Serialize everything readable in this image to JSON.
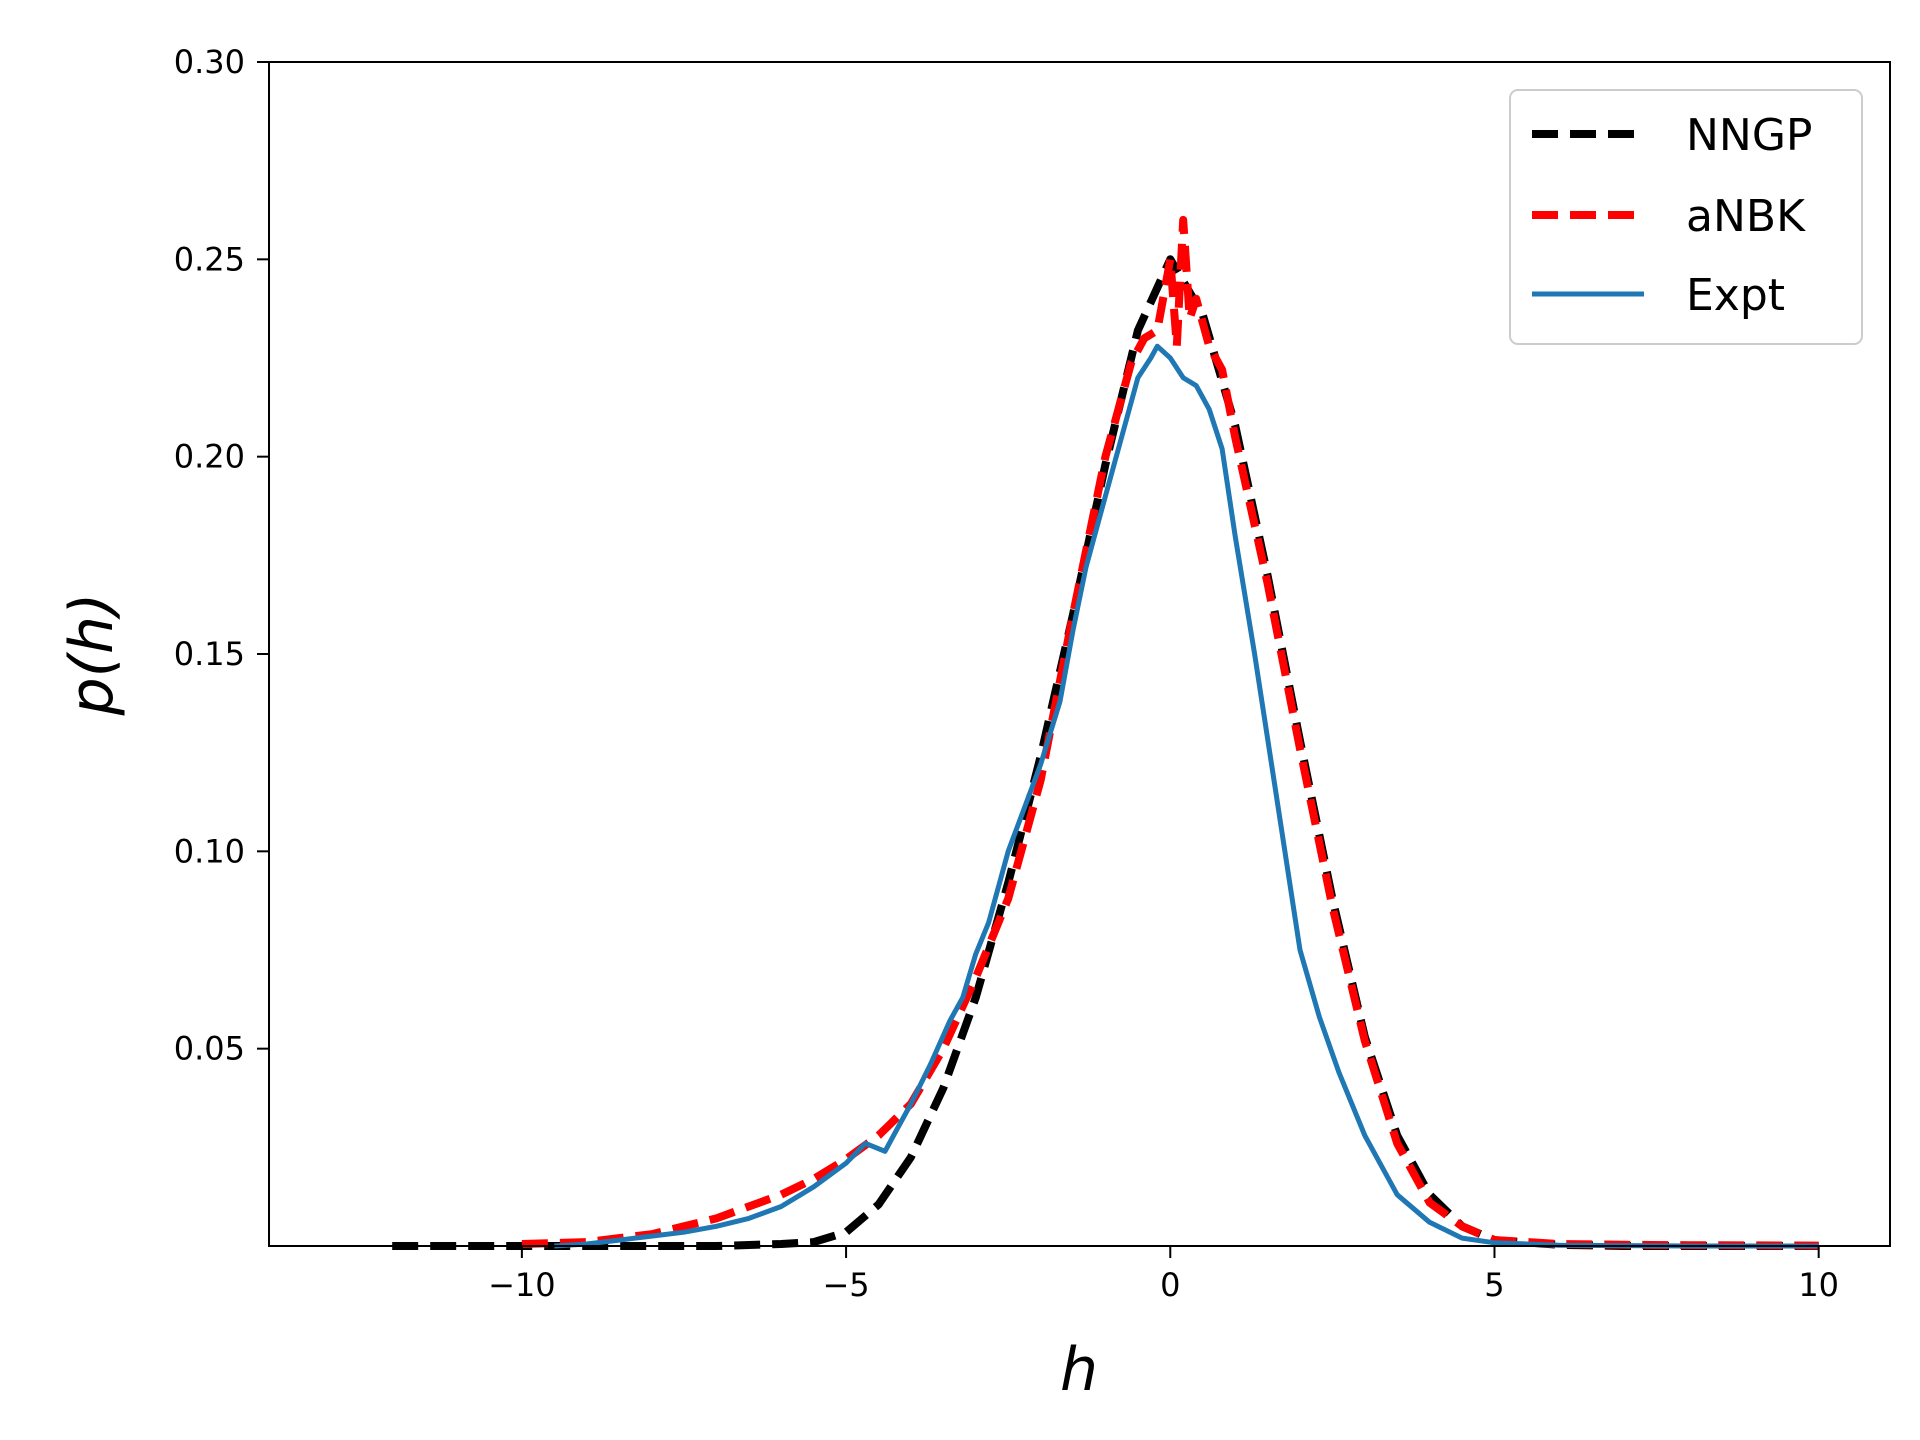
{
  "chart_data": {
    "type": "line",
    "xlabel": "h",
    "ylabel": "p(h)",
    "xlim": [
      -13.9,
      11.1
    ],
    "ylim": [
      0.0,
      0.3
    ],
    "x_ticks": [
      -10,
      -5,
      0,
      5,
      10
    ],
    "x_tick_labels": [
      "−10",
      "−5",
      "0",
      "5",
      "10"
    ],
    "y_ticks": [
      0.05,
      0.1,
      0.15,
      0.2,
      0.25,
      0.3
    ],
    "y_tick_labels": [
      "0.05",
      "0.10",
      "0.15",
      "0.20",
      "0.25",
      "0.30"
    ],
    "grid": false,
    "legend_position": "top-right",
    "series": [
      {
        "name": "NNGP",
        "color": "#000000",
        "style": "dashed",
        "x": [
          -12,
          -10,
          -8,
          -7,
          -6,
          -5.5,
          -5,
          -4.5,
          -4,
          -3.5,
          -3,
          -2.5,
          -2,
          -1.5,
          -1,
          -0.5,
          0,
          0.5,
          1,
          1.5,
          2,
          2.5,
          3,
          3.5,
          4,
          4.5,
          5,
          6,
          7,
          8,
          10
        ],
        "y": [
          0.0,
          0.0,
          0.0,
          0.0,
          0.0005,
          0.001,
          0.0035,
          0.0105,
          0.0225,
          0.04,
          0.063,
          0.092,
          0.124,
          0.16,
          0.198,
          0.232,
          0.25,
          0.236,
          0.208,
          0.17,
          0.128,
          0.088,
          0.053,
          0.028,
          0.013,
          0.005,
          0.0015,
          0.0003,
          0.0,
          0.0,
          0.0
        ]
      },
      {
        "name": "aNBK",
        "color": "#ff0000",
        "style": "dashed",
        "x": [
          -10,
          -9,
          -8.5,
          -8,
          -7.5,
          -7,
          -6.5,
          -6,
          -5.5,
          -5,
          -4.5,
          -4,
          -3.5,
          -3,
          -2.5,
          -2,
          -1.5,
          -1,
          -0.6,
          -0.4,
          -0.2,
          0,
          0.1,
          0.2,
          0.3,
          0.4,
          0.6,
          0.8,
          1,
          1.5,
          2,
          2.5,
          3,
          3.5,
          4,
          4.5,
          5,
          6,
          7,
          8,
          10
        ],
        "y": [
          0.0005,
          0.001,
          0.002,
          0.003,
          0.005,
          0.007,
          0.01,
          0.013,
          0.017,
          0.022,
          0.028,
          0.036,
          0.05,
          0.068,
          0.088,
          0.118,
          0.16,
          0.2,
          0.224,
          0.23,
          0.232,
          0.25,
          0.228,
          0.26,
          0.235,
          0.24,
          0.228,
          0.222,
          0.205,
          0.168,
          0.126,
          0.086,
          0.052,
          0.026,
          0.011,
          0.005,
          0.0015,
          0.0005,
          0.0003,
          0.0002,
          0.0001
        ]
      },
      {
        "name": "Expt",
        "color": "#1f77b4",
        "style": "solid",
        "x": [
          -9.5,
          -9,
          -8.5,
          -8,
          -7.5,
          -7,
          -6.5,
          -6,
          -5.5,
          -5,
          -4.7,
          -4.4,
          -4.2,
          -4,
          -3.7,
          -3.4,
          -3.2,
          -3,
          -2.8,
          -2.5,
          -2,
          -1.7,
          -1.5,
          -1.3,
          -1,
          -0.7,
          -0.5,
          -0.3,
          -0.2,
          0,
          0.2,
          0.4,
          0.6,
          0.8,
          1,
          1.3,
          1.6,
          2,
          2.3,
          2.6,
          3,
          3.5,
          4,
          4.5,
          5,
          6,
          7,
          8,
          10
        ],
        "y": [
          0.0,
          0.0005,
          0.0015,
          0.0025,
          0.0035,
          0.005,
          0.007,
          0.01,
          0.015,
          0.021,
          0.026,
          0.024,
          0.03,
          0.036,
          0.046,
          0.057,
          0.063,
          0.074,
          0.082,
          0.1,
          0.122,
          0.138,
          0.156,
          0.172,
          0.19,
          0.208,
          0.22,
          0.225,
          0.228,
          0.225,
          0.22,
          0.218,
          0.212,
          0.202,
          0.18,
          0.15,
          0.118,
          0.075,
          0.058,
          0.044,
          0.028,
          0.013,
          0.006,
          0.002,
          0.0008,
          0.0002,
          0.0001,
          0.0,
          0.0
        ]
      }
    ]
  }
}
